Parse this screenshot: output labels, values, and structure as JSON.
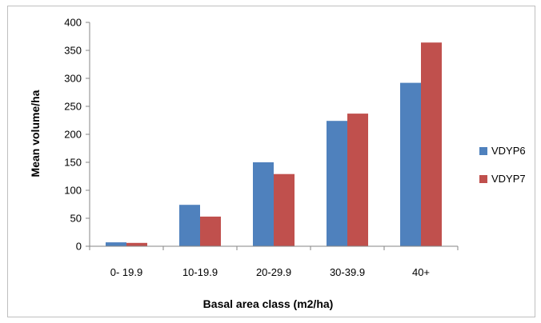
{
  "chart_data": {
    "type": "bar",
    "categories": [
      "0- 19.9",
      "10-19.9",
      "20-29.9",
      "30-39.9",
      "40+"
    ],
    "series": [
      {
        "name": "VDYP6",
        "values": [
          7,
          74,
          150,
          224,
          292
        ],
        "color": "#4f81bd"
      },
      {
        "name": "VDYP7",
        "values": [
          6,
          53,
          129,
          237,
          364
        ],
        "color": "#c0504d"
      }
    ],
    "xlabel": "Basal area class (m2/ha)",
    "ylabel": "Mean volume/ha",
    "ylim": [
      0,
      400
    ],
    "yticks": [
      0,
      50,
      100,
      150,
      200,
      250,
      300,
      350,
      400
    ],
    "grid": false,
    "legend_position": "right"
  }
}
